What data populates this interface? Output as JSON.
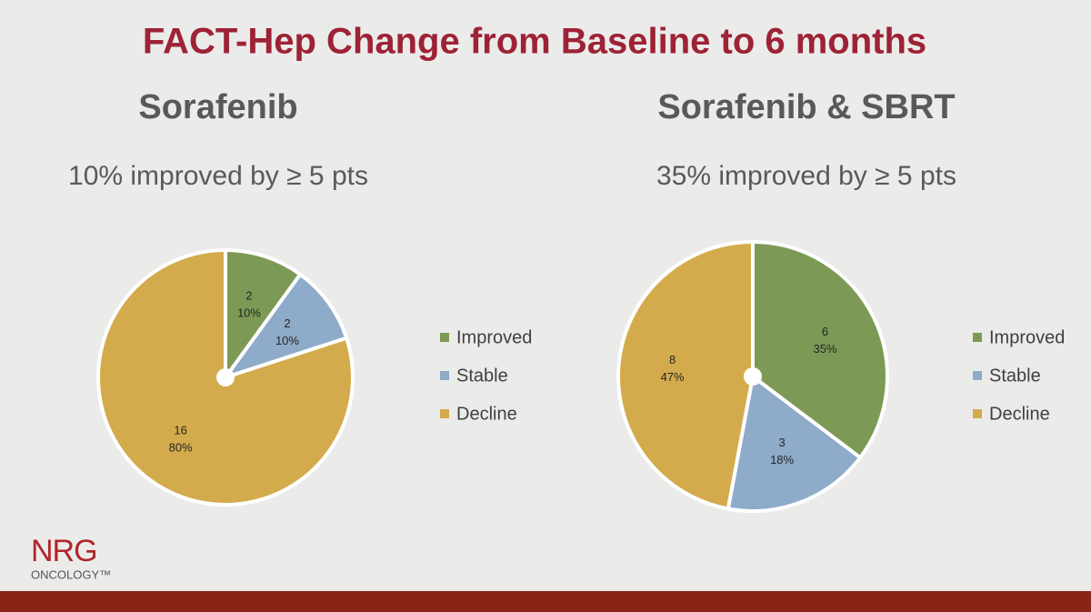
{
  "title": "FACT-Hep Change from Baseline to 6 months",
  "logo": {
    "name": "NRG",
    "tagline": "ONCOLOGY™"
  },
  "chart_data": [
    {
      "type": "pie",
      "title": "Sorafenib",
      "subtitle": "10% improved by ≥ 5 pts",
      "categories": [
        "Improved",
        "Stable",
        "Decline"
      ],
      "colors": [
        "#7c9a55",
        "#8eabc9",
        "#d3ab4c"
      ],
      "values": [
        2,
        2,
        16
      ],
      "percents": [
        10,
        10,
        80
      ],
      "percent_labels": [
        "10%",
        "10%",
        "80%"
      ],
      "legend": "right"
    },
    {
      "type": "pie",
      "title": "Sorafenib & SBRT",
      "subtitle": "35% improved by ≥ 5 pts",
      "categories": [
        "Improved",
        "Stable",
        "Decline"
      ],
      "colors": [
        "#7c9a55",
        "#8eabc9",
        "#d3ab4c"
      ],
      "values": [
        6,
        3,
        8
      ],
      "percents": [
        35,
        18,
        47
      ],
      "percent_labels": [
        "35%",
        "18%",
        "47%"
      ],
      "legend": "right"
    }
  ]
}
